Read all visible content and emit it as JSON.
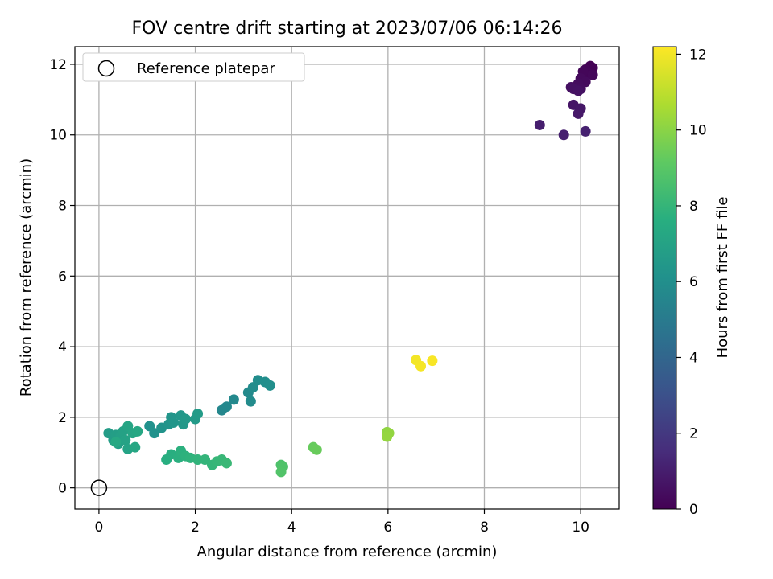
{
  "chart_data": {
    "type": "scatter",
    "title": "FOV centre drift starting at 2023/07/06 06:14:26",
    "xlabel": "Angular distance from reference (arcmin)",
    "ylabel": "Rotation from reference (arcmin)",
    "xlim": [
      -0.5,
      10.8
    ],
    "ylim": [
      -0.6,
      12.5
    ],
    "xticks": [
      0,
      2,
      4,
      6,
      8,
      10
    ],
    "yticks": [
      0,
      2,
      4,
      6,
      8,
      10,
      12
    ],
    "grid": true,
    "legend": {
      "location": "upper-left",
      "entries": [
        "Reference platepar"
      ]
    },
    "reference_point": {
      "x": 0,
      "y": 0,
      "label": "Reference platepar"
    },
    "colorbar": {
      "label": "Hours from first FF file",
      "min": 0,
      "max": 12.2,
      "ticks": [
        0,
        2,
        4,
        6,
        8,
        10,
        12
      ],
      "colormap": "viridis"
    },
    "points": [
      {
        "x": 10.2,
        "y": 11.95,
        "h": 0.0
      },
      {
        "x": 10.25,
        "y": 11.9,
        "h": 0.05
      },
      {
        "x": 10.1,
        "y": 11.85,
        "h": 0.1
      },
      {
        "x": 10.15,
        "y": 11.75,
        "h": 0.15
      },
      {
        "x": 10.05,
        "y": 11.8,
        "h": 0.2
      },
      {
        "x": 10.25,
        "y": 11.7,
        "h": 0.25
      },
      {
        "x": 10.0,
        "y": 11.6,
        "h": 0.3
      },
      {
        "x": 10.1,
        "y": 11.5,
        "h": 0.35
      },
      {
        "x": 9.95,
        "y": 11.45,
        "h": 0.4
      },
      {
        "x": 10.0,
        "y": 11.3,
        "h": 0.45
      },
      {
        "x": 9.8,
        "y": 11.35,
        "h": 0.5
      },
      {
        "x": 9.85,
        "y": 11.3,
        "h": 0.55
      },
      {
        "x": 9.95,
        "y": 11.25,
        "h": 0.6
      },
      {
        "x": 9.85,
        "y": 10.85,
        "h": 0.7
      },
      {
        "x": 10.0,
        "y": 10.75,
        "h": 0.75
      },
      {
        "x": 9.95,
        "y": 10.6,
        "h": 0.8
      },
      {
        "x": 9.15,
        "y": 10.28,
        "h": 1.0
      },
      {
        "x": 9.65,
        "y": 10.0,
        "h": 1.05
      },
      {
        "x": 10.1,
        "y": 10.1,
        "h": 1.1
      },
      {
        "x": 2.55,
        "y": 2.2,
        "h": 5.6
      },
      {
        "x": 2.65,
        "y": 2.3,
        "h": 5.65
      },
      {
        "x": 2.8,
        "y": 2.5,
        "h": 5.7
      },
      {
        "x": 3.1,
        "y": 2.7,
        "h": 5.75
      },
      {
        "x": 3.15,
        "y": 2.45,
        "h": 5.8
      },
      {
        "x": 3.2,
        "y": 2.85,
        "h": 5.85
      },
      {
        "x": 3.3,
        "y": 3.05,
        "h": 5.9
      },
      {
        "x": 3.45,
        "y": 3.0,
        "h": 5.95
      },
      {
        "x": 3.55,
        "y": 2.9,
        "h": 6.0
      },
      {
        "x": 1.05,
        "y": 1.75,
        "h": 6.1
      },
      {
        "x": 1.15,
        "y": 1.55,
        "h": 6.15
      },
      {
        "x": 1.3,
        "y": 1.7,
        "h": 6.2
      },
      {
        "x": 1.45,
        "y": 1.8,
        "h": 6.25
      },
      {
        "x": 1.5,
        "y": 2.0,
        "h": 6.3
      },
      {
        "x": 1.55,
        "y": 1.85,
        "h": 6.35
      },
      {
        "x": 1.7,
        "y": 2.05,
        "h": 6.4
      },
      {
        "x": 1.75,
        "y": 1.8,
        "h": 6.45
      },
      {
        "x": 1.8,
        "y": 1.95,
        "h": 6.5
      },
      {
        "x": 2.0,
        "y": 1.95,
        "h": 6.55
      },
      {
        "x": 2.05,
        "y": 2.1,
        "h": 6.6
      },
      {
        "x": 0.2,
        "y": 1.55,
        "h": 6.7
      },
      {
        "x": 0.3,
        "y": 1.35,
        "h": 6.75
      },
      {
        "x": 0.35,
        "y": 1.5,
        "h": 6.8
      },
      {
        "x": 0.4,
        "y": 1.25,
        "h": 6.85
      },
      {
        "x": 0.45,
        "y": 1.45,
        "h": 6.9
      },
      {
        "x": 0.5,
        "y": 1.6,
        "h": 6.95
      },
      {
        "x": 0.55,
        "y": 1.35,
        "h": 7.0
      },
      {
        "x": 0.6,
        "y": 1.1,
        "h": 7.05
      },
      {
        "x": 0.6,
        "y": 1.75,
        "h": 7.1
      },
      {
        "x": 0.7,
        "y": 1.55,
        "h": 7.15
      },
      {
        "x": 0.75,
        "y": 1.15,
        "h": 7.2
      },
      {
        "x": 0.8,
        "y": 1.6,
        "h": 7.25
      },
      {
        "x": 0.35,
        "y": 1.3,
        "h": 7.3
      },
      {
        "x": 1.4,
        "y": 0.8,
        "h": 7.6
      },
      {
        "x": 1.5,
        "y": 0.95,
        "h": 7.65
      },
      {
        "x": 1.65,
        "y": 0.85,
        "h": 7.7
      },
      {
        "x": 1.7,
        "y": 1.05,
        "h": 7.75
      },
      {
        "x": 1.8,
        "y": 0.9,
        "h": 7.8
      },
      {
        "x": 1.9,
        "y": 0.85,
        "h": 7.85
      },
      {
        "x": 2.05,
        "y": 0.8,
        "h": 7.9
      },
      {
        "x": 2.2,
        "y": 0.8,
        "h": 7.95
      },
      {
        "x": 2.35,
        "y": 0.65,
        "h": 8.0
      },
      {
        "x": 2.45,
        "y": 0.75,
        "h": 8.05
      },
      {
        "x": 2.55,
        "y": 0.8,
        "h": 8.1
      },
      {
        "x": 2.65,
        "y": 0.7,
        "h": 8.15
      },
      {
        "x": 3.78,
        "y": 0.65,
        "h": 8.7
      },
      {
        "x": 3.82,
        "y": 0.6,
        "h": 8.75
      },
      {
        "x": 3.78,
        "y": 0.45,
        "h": 8.8
      },
      {
        "x": 4.45,
        "y": 1.15,
        "h": 9.3
      },
      {
        "x": 4.52,
        "y": 1.08,
        "h": 9.35
      },
      {
        "x": 5.98,
        "y": 1.58,
        "h": 10.1
      },
      {
        "x": 6.02,
        "y": 1.55,
        "h": 10.15
      },
      {
        "x": 5.98,
        "y": 1.45,
        "h": 10.2
      },
      {
        "x": 6.58,
        "y": 3.62,
        "h": 12.0
      },
      {
        "x": 6.68,
        "y": 3.45,
        "h": 12.05
      },
      {
        "x": 6.92,
        "y": 3.6,
        "h": 12.1
      }
    ]
  }
}
